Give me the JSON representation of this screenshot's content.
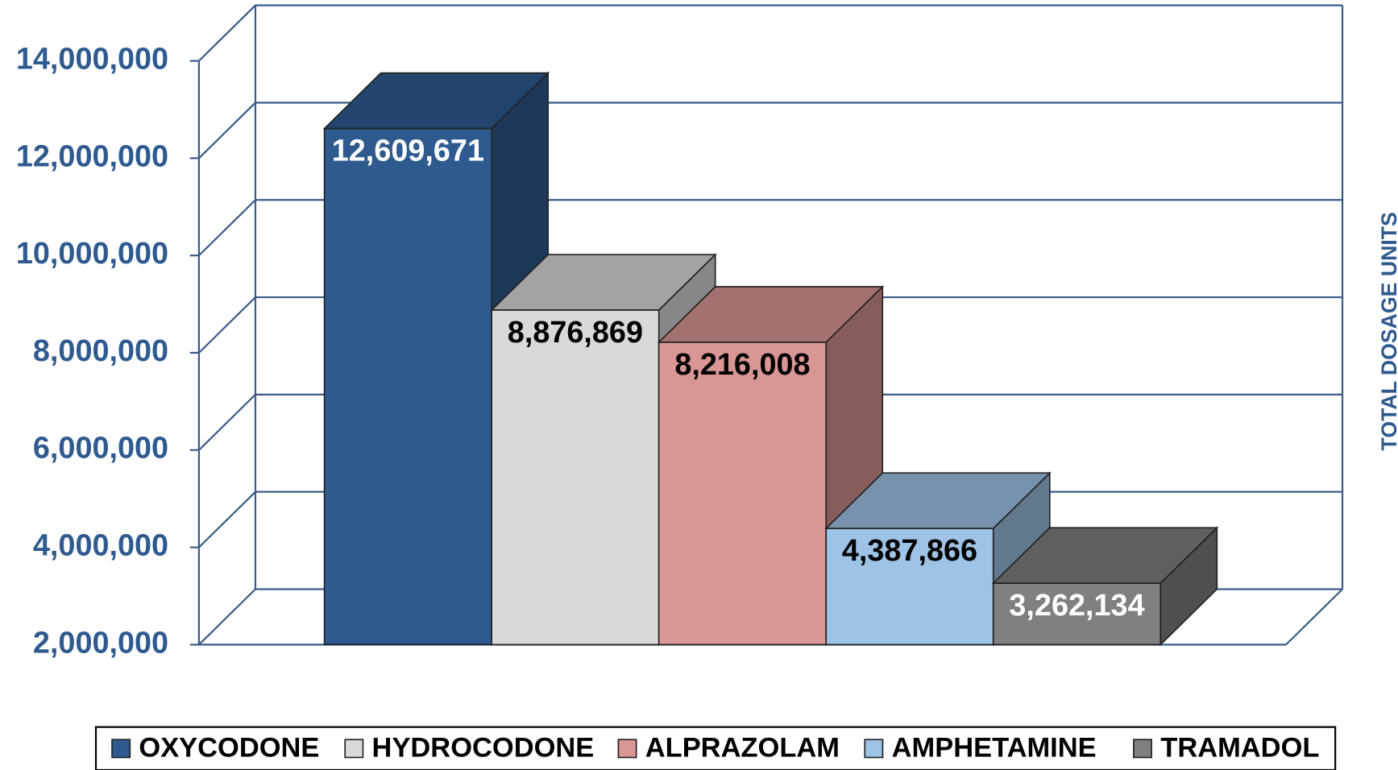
{
  "chart_data": {
    "type": "bar3d",
    "y_axis_label": "TOTAL DOSAGE UNITS",
    "categories": [
      "OXYCODONE",
      "HYDROCODONE",
      "ALPRAZOLAM",
      "AMPHETAMINE",
      "TRAMADOL"
    ],
    "values": [
      12609671,
      8876869,
      8216008,
      4387866,
      3262134
    ],
    "value_labels": [
      "12,609,671",
      "8,876,869",
      "8,216,008",
      "4,387,866",
      "3,262,134"
    ],
    "colors": [
      "#2e5a90",
      "#d9d9d9",
      "#d99694",
      "#9dc3e6",
      "#808080"
    ],
    "value_label_colors": [
      "#ffffff",
      "#000000",
      "#000000",
      "#000000",
      "#ffffff"
    ],
    "ylim": [
      2000000,
      14000000
    ],
    "yticks": [
      {
        "value": 2000000,
        "label": "2,000,000"
      },
      {
        "value": 4000000,
        "label": "4,000,000"
      },
      {
        "value": 6000000,
        "label": "6,000,000"
      },
      {
        "value": 8000000,
        "label": "8,000,000"
      },
      {
        "value": 10000000,
        "label": "10,000,000"
      },
      {
        "value": 12000000,
        "label": "12,000,000"
      },
      {
        "value": 14000000,
        "label": "14,000,000"
      }
    ],
    "grid": true,
    "legend": "bottom"
  }
}
